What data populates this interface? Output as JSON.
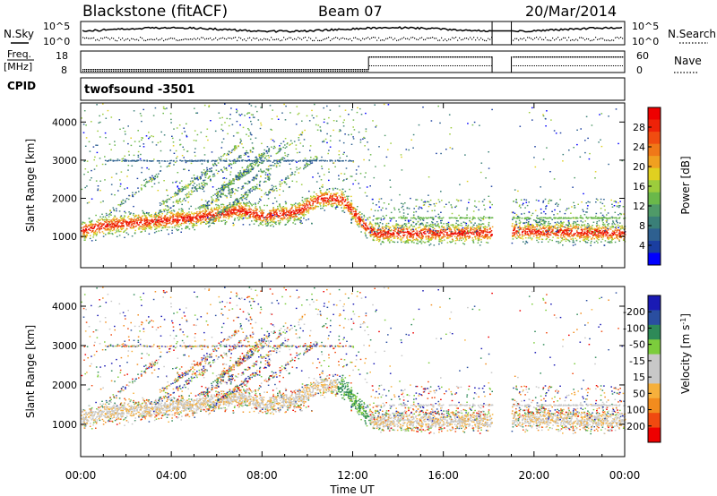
{
  "header": {
    "radar": "Blackstone (fitACF)",
    "beam": "Beam 07",
    "date": "20/Mar/2014"
  },
  "panels": {
    "nsky": {
      "left_label": "N.Sky",
      "right_label": "N.Search",
      "left_ticks": [
        "10^5",
        "10^0"
      ],
      "right_ticks": [
        "10^5",
        "10^0"
      ]
    },
    "freq": {
      "left_label_top": "Freq.",
      "left_label_bottom": "[MHz]",
      "right_label": "Nave",
      "left_ticks": [
        "18",
        "8"
      ],
      "right_ticks": [
        "60",
        "0"
      ]
    },
    "cpid": {
      "label": "CPID",
      "text": "twofsound  -3501"
    }
  },
  "colors": {
    "power": [
      "#0000ff",
      "#1a3ea0",
      "#2e6090",
      "#3a7f78",
      "#4f9a68",
      "#6ab84a",
      "#9ccc3c",
      "#e0d020",
      "#f0a020",
      "#f07818",
      "#f04c10",
      "#ee2208",
      "#ee0000"
    ],
    "velocity": [
      "#ee0000",
      "#f04a10",
      "#f28c1e",
      "#f6b03c",
      "#c8c8c8",
      "#c8c8c8",
      "#7ccc3c",
      "#2e8a58",
      "#2a4ea0",
      "#1a1ab4"
    ]
  },
  "chart_data": [
    {
      "type": "heatmap",
      "title": "Power",
      "xlabel": "Time UT",
      "ylabel": "Slant Range [km]",
      "colorbar_label": "Power [dB]",
      "x_ticks": [
        "00:00",
        "04:00",
        "08:00",
        "12:00",
        "16:00",
        "20:00",
        "00:00"
      ],
      "x_range_hours": [
        0,
        24
      ],
      "y_ticks": [
        1000,
        2000,
        3000,
        4000
      ],
      "y_range_km": [
        180,
        4500
      ],
      "colorbar_ticks": [
        "4",
        "8",
        "12",
        "16",
        "20",
        "24",
        "28"
      ],
      "color_range": [
        0,
        32
      ],
      "data_gap_hours": [
        18.15,
        19.0
      ],
      "main_echo_band": {
        "center_km": [
          [
            0,
            1150
          ],
          [
            1,
            1300
          ],
          [
            3,
            1400
          ],
          [
            5,
            1500
          ],
          [
            7,
            1700
          ],
          [
            8,
            1550
          ],
          [
            9.5,
            1650
          ],
          [
            10.5,
            2000
          ],
          [
            11.5,
            2000
          ],
          [
            12.5,
            1300
          ],
          [
            13,
            1100
          ],
          [
            18,
            1100
          ],
          [
            19,
            1150
          ],
          [
            24,
            1100
          ]
        ],
        "peak_power_db": 30
      }
    },
    {
      "type": "heatmap",
      "title": "Velocity",
      "xlabel": "Time UT",
      "ylabel": "Slant Range [km]",
      "colorbar_label": "Velocity [m s-1]",
      "colorbar_ticks": [
        "-200",
        "-100",
        "-50",
        "-15",
        "15",
        "50",
        "100",
        "200"
      ],
      "color_range": [
        -250,
        250
      ],
      "x_ticks": [
        "00:00",
        "04:00",
        "08:00",
        "12:00",
        "16:00",
        "20:00",
        "00:00"
      ],
      "y_ticks": [
        1000,
        2000,
        3000,
        4000
      ],
      "y_range_km": [
        180,
        4500
      ]
    }
  ]
}
